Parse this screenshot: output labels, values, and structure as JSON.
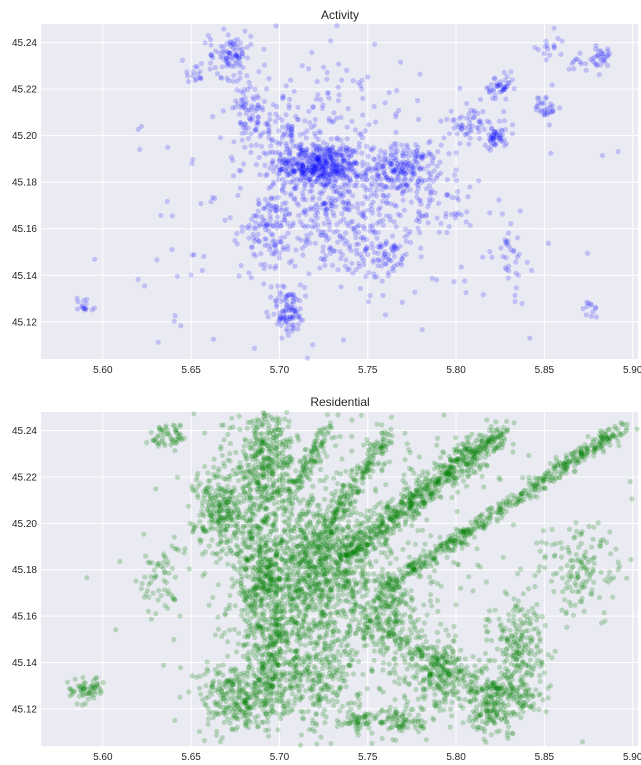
{
  "chart_data": [
    {
      "type": "scatter",
      "title": "Activity",
      "xlabel": "",
      "ylabel": "",
      "xlim": [
        5.565,
        5.903
      ],
      "ylim": [
        45.104,
        45.248
      ],
      "xticks": [
        "5.60",
        "5.65",
        "5.70",
        "5.75",
        "5.80",
        "5.85",
        "5.90"
      ],
      "yticks": [
        "45.12",
        "45.14",
        "45.16",
        "45.18",
        "45.20",
        "45.22",
        "45.24"
      ],
      "grid": true,
      "color": "#0000ff",
      "opacity": 0.18,
      "clusters": [
        {
          "x": 5.722,
          "y": 45.187,
          "sx": 0.012,
          "sy": 0.005,
          "n": 420
        },
        {
          "x": 5.77,
          "y": 45.186,
          "sx": 0.01,
          "sy": 0.005,
          "n": 200
        },
        {
          "x": 5.73,
          "y": 45.168,
          "sx": 0.022,
          "sy": 0.015,
          "n": 380
        },
        {
          "x": 5.705,
          "y": 45.125,
          "sx": 0.005,
          "sy": 0.005,
          "n": 90
        },
        {
          "x": 5.695,
          "y": 45.16,
          "sx": 0.006,
          "sy": 0.008,
          "n": 90
        },
        {
          "x": 5.672,
          "y": 45.235,
          "sx": 0.006,
          "sy": 0.005,
          "n": 90
        },
        {
          "x": 5.683,
          "y": 45.212,
          "sx": 0.005,
          "sy": 0.006,
          "n": 60
        },
        {
          "x": 5.7,
          "y": 45.202,
          "sx": 0.01,
          "sy": 0.006,
          "n": 80
        },
        {
          "x": 5.76,
          "y": 45.15,
          "sx": 0.008,
          "sy": 0.006,
          "n": 70
        },
        {
          "x": 5.809,
          "y": 45.205,
          "sx": 0.008,
          "sy": 0.004,
          "n": 60
        },
        {
          "x": 5.825,
          "y": 45.22,
          "sx": 0.004,
          "sy": 0.003,
          "n": 40
        },
        {
          "x": 5.823,
          "y": 45.199,
          "sx": 0.003,
          "sy": 0.002,
          "n": 40
        },
        {
          "x": 5.851,
          "y": 45.212,
          "sx": 0.003,
          "sy": 0.003,
          "n": 30
        },
        {
          "x": 5.882,
          "y": 45.234,
          "sx": 0.003,
          "sy": 0.002,
          "n": 25
        },
        {
          "x": 5.871,
          "y": 45.232,
          "sx": 0.004,
          "sy": 0.002,
          "n": 15
        },
        {
          "x": 5.853,
          "y": 45.239,
          "sx": 0.004,
          "sy": 0.003,
          "n": 15
        },
        {
          "x": 5.83,
          "y": 45.15,
          "sx": 0.005,
          "sy": 0.009,
          "n": 35
        },
        {
          "x": 5.59,
          "y": 45.127,
          "sx": 0.003,
          "sy": 0.002,
          "n": 15
        },
        {
          "x": 5.876,
          "y": 45.125,
          "sx": 0.002,
          "sy": 0.002,
          "n": 12
        },
        {
          "x": 5.65,
          "y": 45.228,
          "sx": 0.004,
          "sy": 0.003,
          "n": 15
        },
        {
          "x": 5.728,
          "y": 45.212,
          "sx": 0.012,
          "sy": 0.01,
          "n": 50
        },
        {
          "x": 5.79,
          "y": 45.17,
          "sx": 0.01,
          "sy": 0.01,
          "n": 50
        },
        {
          "x": 5.735,
          "y": 45.18,
          "sx": 0.06,
          "sy": 0.04,
          "n": 200
        }
      ]
    },
    {
      "type": "scatter",
      "title": "Residential",
      "xlabel": "",
      "ylabel": "",
      "xlim": [
        5.565,
        5.903
      ],
      "ylim": [
        45.104,
        45.248
      ],
      "xticks": [
        "5.60",
        "5.65",
        "5.70",
        "5.75",
        "5.80",
        "5.85",
        "5.90"
      ],
      "yticks": [
        "45.12",
        "45.14",
        "45.16",
        "45.18",
        "45.20",
        "45.22",
        "45.24"
      ],
      "grid": true,
      "color": "#008000",
      "opacity": 0.22,
      "clusters": [
        {
          "x": 5.72,
          "y": 45.18,
          "sx": 0.018,
          "sy": 0.015,
          "n": 900
        },
        {
          "x": 5.692,
          "y": 45.225,
          "sx": 0.008,
          "sy": 0.014,
          "n": 420
        },
        {
          "x": 5.668,
          "y": 45.205,
          "sx": 0.008,
          "sy": 0.01,
          "n": 280
        },
        {
          "x": 5.69,
          "y": 45.17,
          "sx": 0.008,
          "sy": 0.014,
          "n": 380
        },
        {
          "x": 5.715,
          "y": 45.135,
          "sx": 0.016,
          "sy": 0.012,
          "n": 420
        },
        {
          "x": 5.675,
          "y": 45.125,
          "sx": 0.01,
          "sy": 0.008,
          "n": 260
        },
        {
          "x": 5.76,
          "y": 45.16,
          "sx": 0.01,
          "sy": 0.012,
          "n": 280
        },
        {
          "x": 5.79,
          "y": 45.135,
          "sx": 0.01,
          "sy": 0.008,
          "n": 220
        },
        {
          "x": 5.835,
          "y": 45.145,
          "sx": 0.008,
          "sy": 0.012,
          "n": 240
        },
        {
          "x": 5.82,
          "y": 45.12,
          "sx": 0.008,
          "sy": 0.006,
          "n": 160
        },
        {
          "x": 5.87,
          "y": 45.18,
          "sx": 0.012,
          "sy": 0.01,
          "n": 140
        },
        {
          "x": 5.59,
          "y": 45.128,
          "sx": 0.005,
          "sy": 0.003,
          "n": 60
        },
        {
          "x": 5.632,
          "y": 45.175,
          "sx": 0.006,
          "sy": 0.008,
          "n": 60
        },
        {
          "x": 5.638,
          "y": 45.238,
          "sx": 0.005,
          "sy": 0.003,
          "n": 50
        },
        {
          "x": 5.77,
          "y": 45.115,
          "sx": 0.008,
          "sy": 0.003,
          "n": 80
        },
        {
          "x": 5.745,
          "y": 45.115,
          "sx": 0.006,
          "sy": 0.002,
          "n": 50
        },
        {
          "x": 5.74,
          "y": 45.19,
          "sx": 0.05,
          "sy": 0.04,
          "n": 500
        }
      ],
      "bands": [
        {
          "from": [
            5.735,
            45.185
          ],
          "to": [
            5.825,
            45.24
          ],
          "width": 0.005,
          "n": 700
        },
        {
          "from": [
            5.76,
            45.172
          ],
          "to": [
            5.895,
            45.242
          ],
          "width": 0.003,
          "n": 500
        },
        {
          "from": [
            5.725,
            45.195
          ],
          "to": [
            5.762,
            45.24
          ],
          "width": 0.003,
          "n": 180
        },
        {
          "from": [
            5.705,
            45.21
          ],
          "to": [
            5.728,
            45.241
          ],
          "width": 0.003,
          "n": 120
        },
        {
          "from": [
            5.7,
            45.16
          ],
          "to": [
            5.69,
            45.12
          ],
          "width": 0.004,
          "n": 140
        },
        {
          "from": [
            5.77,
            45.148
          ],
          "to": [
            5.845,
            45.12
          ],
          "width": 0.004,
          "n": 160
        }
      ]
    }
  ]
}
